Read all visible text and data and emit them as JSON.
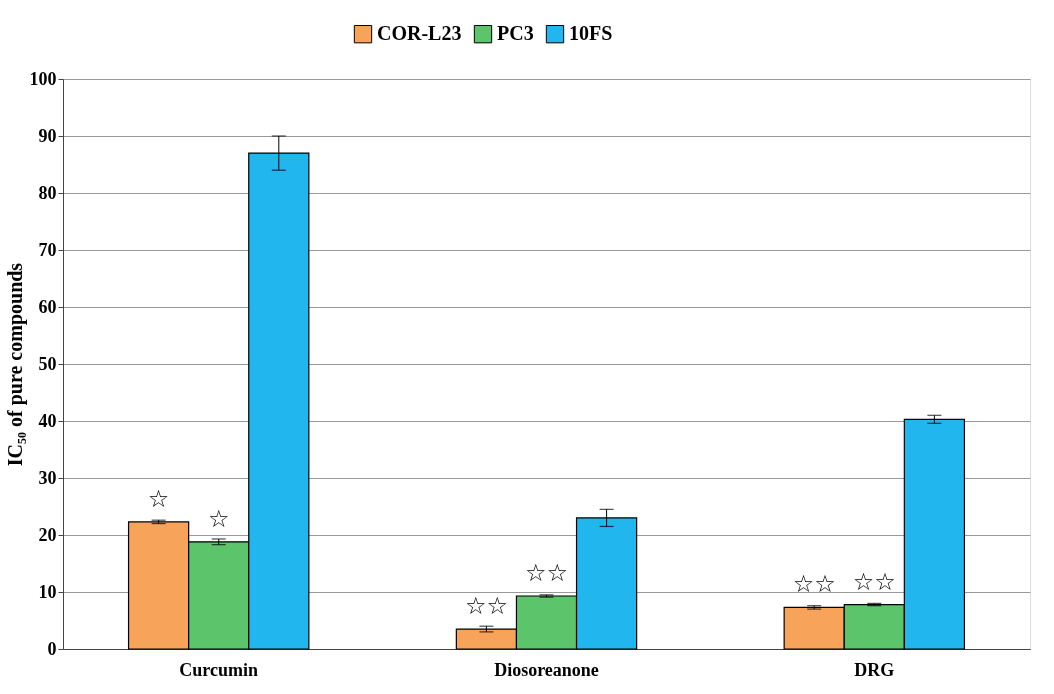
{
  "chart_data": {
    "type": "bar",
    "ylabel": "IC₅₀ of pure compounds",
    "categories": [
      "Curcumin",
      "Diosoreanone",
      "DRG"
    ],
    "series": [
      {
        "name": "COR-L23",
        "color": "#f7a45a",
        "values": [
          22.3,
          3.5,
          7.3
        ],
        "errors": [
          0.3,
          0.5,
          0.3
        ],
        "value_labels": [
          "☆",
          "☆☆",
          "☆☆"
        ]
      },
      {
        "name": "PC3",
        "color": "#5cc46a",
        "values": [
          18.8,
          9.3,
          7.8
        ],
        "errors": [
          0.5,
          0.2,
          0.2
        ],
        "value_labels": [
          "☆",
          "☆☆",
          "☆☆"
        ]
      },
      {
        "name": "10FS",
        "color": "#22b6ee",
        "values": [
          87,
          23,
          40.3
        ],
        "errors": [
          3,
          1.5,
          0.7
        ]
      }
    ],
    "ylim": [
      0,
      100
    ],
    "yticks": [
      0,
      10,
      20,
      30,
      40,
      50,
      60,
      70,
      80,
      90,
      100
    ],
    "grid": "y",
    "legend": "top"
  }
}
